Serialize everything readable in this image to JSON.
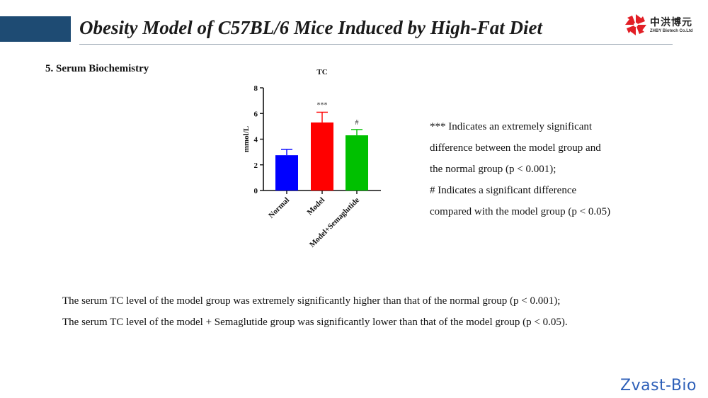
{
  "slide": {
    "title": "Obesity Model of C57BL/6 Mice Induced by High-Fat Diet",
    "section_heading": "5. Serum Biochemistry",
    "accent_color": "#1e4b73"
  },
  "logo": {
    "name_cn": "中洪博元",
    "name_en": "ZHBY Biotech Co.Ltd",
    "icon": "red-pinwheel-logo-icon",
    "color": "#e21f26"
  },
  "chart_data": {
    "type": "bar",
    "title": "TC",
    "ylabel": "mmol/L",
    "xlabel": "",
    "ylim": [
      0,
      8
    ],
    "yticks": [
      0,
      2,
      4,
      6,
      8
    ],
    "categories": [
      "Normal",
      "Model",
      "Model+Semaglutide"
    ],
    "values": [
      2.75,
      5.3,
      4.3
    ],
    "errors": [
      0.45,
      0.8,
      0.45
    ],
    "colors": [
      "#0000ff",
      "#ff0000",
      "#00c000"
    ],
    "annotations": [
      "",
      "***",
      "#"
    ],
    "grid": false
  },
  "notes": [
    "*** Indicates an extremely significant",
    "difference between the model group and",
    "the normal group (p < 0.001);",
    "# Indicates a significant difference",
    "compared with the model group (p < 0.05)"
  ],
  "summary": [
    "The serum TC level of the model group was extremely significantly higher than that of the normal group (p < 0.001);",
    "The serum TC level of the model + Semaglutide group was significantly lower than that of the model group (p < 0.05)."
  ],
  "watermark": "Zvast-Bio"
}
